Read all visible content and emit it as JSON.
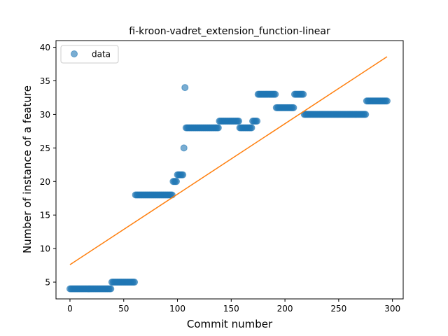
{
  "chart_data": {
    "type": "scatter",
    "title": "fi-kroon-vadret_extension_function-linear",
    "xlabel": "Commit number",
    "ylabel": "Number of instance of a feature",
    "xlim": [
      -13,
      310
    ],
    "ylim": [
      2.5,
      41
    ],
    "xticks": [
      0,
      50,
      100,
      150,
      200,
      250,
      300
    ],
    "yticks": [
      5,
      10,
      15,
      20,
      25,
      30,
      35,
      40
    ],
    "grid": false,
    "legend": {
      "position": "top-left",
      "entries": [
        "data"
      ]
    },
    "colors": {
      "points": "#1f77b4",
      "fit": "#ff7f0e"
    },
    "series": [
      {
        "name": "data",
        "kind": "scatter",
        "segments": [
          {
            "x_start": 0,
            "x_end": 38,
            "y": 4
          },
          {
            "x_start": 39,
            "x_end": 60,
            "y": 5
          },
          {
            "x_start": 61,
            "x_end": 95,
            "y": 18
          },
          {
            "x_start": 96,
            "x_end": 99,
            "y": 20
          },
          {
            "x_start": 100,
            "x_end": 105,
            "y": 21
          },
          {
            "x_start": 106,
            "x_end": 106,
            "y": 25
          },
          {
            "x_start": 107,
            "x_end": 107,
            "y": 34
          },
          {
            "x_start": 108,
            "x_end": 138,
            "y": 28
          },
          {
            "x_start": 139,
            "x_end": 157,
            "y": 29
          },
          {
            "x_start": 158,
            "x_end": 169,
            "y": 28
          },
          {
            "x_start": 170,
            "x_end": 174,
            "y": 29
          },
          {
            "x_start": 175,
            "x_end": 191,
            "y": 33
          },
          {
            "x_start": 192,
            "x_end": 208,
            "y": 31
          },
          {
            "x_start": 209,
            "x_end": 217,
            "y": 33
          },
          {
            "x_start": 218,
            "x_end": 275,
            "y": 30
          },
          {
            "x_start": 276,
            "x_end": 295,
            "y": 32
          }
        ]
      },
      {
        "name": "",
        "kind": "line",
        "x": [
          0,
          295
        ],
        "y": [
          7.6,
          38.6
        ]
      }
    ]
  }
}
